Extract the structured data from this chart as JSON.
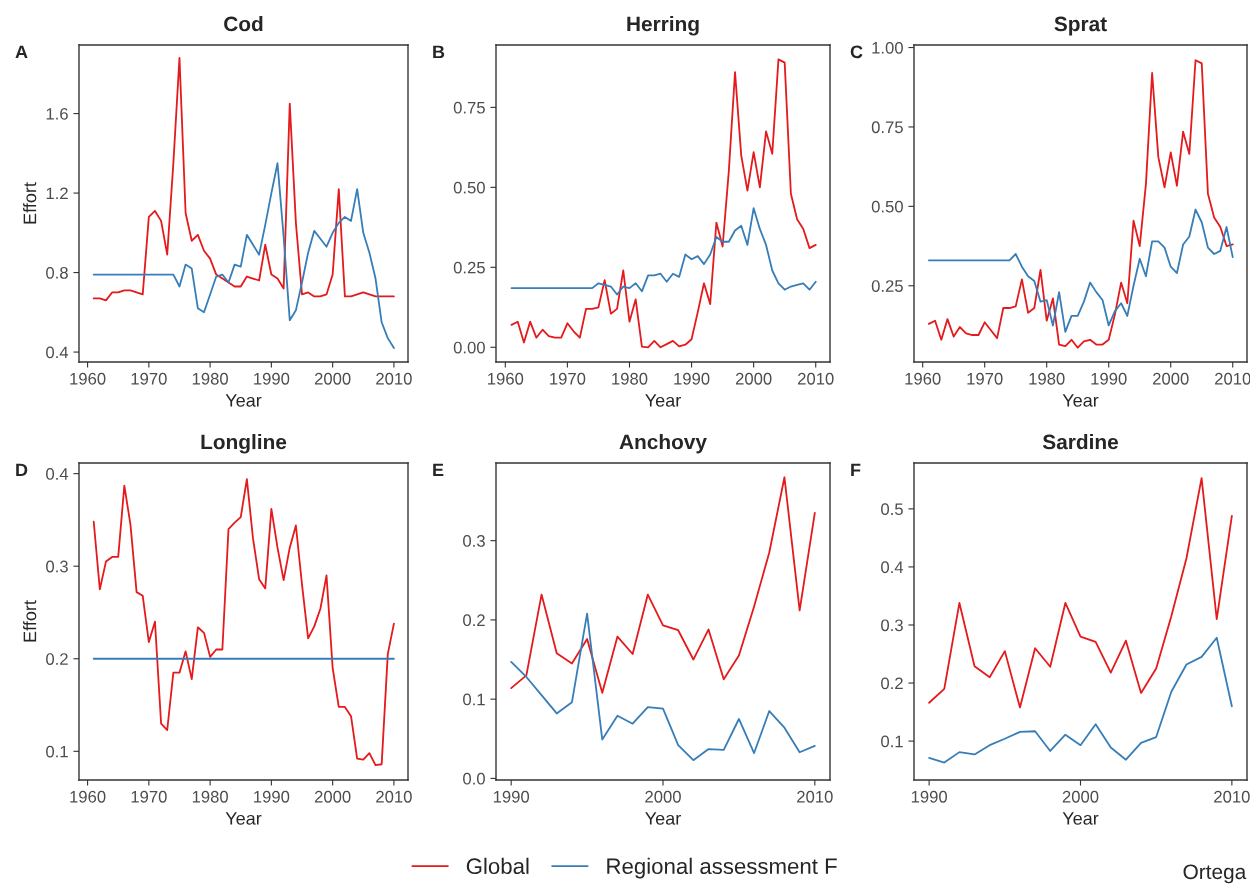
{
  "chart_data": [
    {
      "type": "line",
      "title": "Cod",
      "xlabel": "Year",
      "ylabel": "Effort",
      "annotations": [
        "A"
      ],
      "xlim": [
        1958.6,
        2012.3
      ],
      "xticks": [
        1960,
        1970,
        1980,
        1990,
        2000,
        2010
      ],
      "ylim": [
        0.35,
        1.945
      ],
      "yticks": [
        0.4,
        0.8,
        1.2,
        1.6
      ],
      "grid": false,
      "legend": "bottom",
      "series": [
        {
          "name": "Global",
          "color": "#e41a1c",
          "x": [
            1961,
            1962,
            1963,
            1964,
            1965,
            1966,
            1967,
            1968,
            1969,
            1970,
            1971,
            1972,
            1973,
            1974,
            1975,
            1976,
            1977,
            1978,
            1979,
            1980,
            1981,
            1982,
            1983,
            1984,
            1985,
            1986,
            1987,
            1988,
            1989,
            1990,
            1991,
            1992,
            1993,
            1994,
            1995,
            1996,
            1997,
            1998,
            1999,
            2000,
            2001,
            2002,
            2003,
            2004,
            2005,
            2006,
            2007,
            2008,
            2009,
            2010
          ],
          "values": [
            0.67,
            0.67,
            0.66,
            0.7,
            0.7,
            0.71,
            0.71,
            0.7,
            0.69,
            1.08,
            1.11,
            1.06,
            0.89,
            1.35,
            1.88,
            1.1,
            0.96,
            0.99,
            0.91,
            0.87,
            0.79,
            0.77,
            0.75,
            0.73,
            0.73,
            0.78,
            0.77,
            0.76,
            0.94,
            0.79,
            0.77,
            0.72,
            1.65,
            1.05,
            0.69,
            0.7,
            0.68,
            0.68,
            0.69,
            0.79,
            1.22,
            0.68,
            0.68,
            0.69,
            0.7,
            0.69,
            0.68,
            0.68,
            0.68,
            0.68
          ]
        },
        {
          "name": "Regional assessment F",
          "color": "#377eb8",
          "x": [
            1961,
            1974,
            1975,
            1976,
            1977,
            1978,
            1979,
            1980,
            1981,
            1982,
            1983,
            1984,
            1985,
            1986,
            1987,
            1988,
            1989,
            1990,
            1991,
            1992,
            1993,
            1994,
            1995,
            1996,
            1997,
            1998,
            1999,
            2000,
            2001,
            2002,
            2003,
            2004,
            2005,
            2006,
            2007,
            2008,
            2009,
            2010
          ],
          "values": [
            0.79,
            0.79,
            0.73,
            0.84,
            0.82,
            0.62,
            0.6,
            0.69,
            0.78,
            0.79,
            0.75,
            0.84,
            0.83,
            0.99,
            0.94,
            0.89,
            1.04,
            1.2,
            1.35,
            0.98,
            0.56,
            0.61,
            0.75,
            0.9,
            1.01,
            0.97,
            0.93,
            1.0,
            1.05,
            1.08,
            1.06,
            1.22,
            1.0,
            0.9,
            0.77,
            0.55,
            0.47,
            0.42
          ]
        }
      ]
    },
    {
      "type": "line",
      "title": "Herring",
      "xlabel": "Year",
      "annotations": [
        "B"
      ],
      "xlim": [
        1958.5,
        2012.3
      ],
      "xticks": [
        1960,
        1970,
        1980,
        1990,
        2000,
        2010
      ],
      "ylim": [
        -0.046,
        0.945
      ],
      "yticks": [
        {
          "value": 0,
          "label": "0.00"
        },
        0.25,
        {
          "value": 0.5,
          "label": "0.50"
        },
        0.75
      ],
      "grid": false,
      "series": [
        {
          "name": "Global",
          "color": "#e41a1c",
          "x": [
            1961,
            1962,
            1963,
            1964,
            1965,
            1966,
            1967,
            1968,
            1969,
            1970,
            1971,
            1972,
            1973,
            1974,
            1975,
            1976,
            1977,
            1978,
            1979,
            1980,
            1981,
            1982,
            1983,
            1984,
            1985,
            1986,
            1987,
            1988,
            1989,
            1990,
            1991,
            1992,
            1993,
            1994,
            1995,
            1996,
            1997,
            1998,
            1999,
            2000,
            2001,
            2002,
            2003,
            2004,
            2005,
            2006,
            2007,
            2008,
            2009,
            2010
          ],
          "values": [
            0.07,
            0.08,
            0.015,
            0.08,
            0.03,
            0.055,
            0.035,
            0.03,
            0.03,
            0.075,
            0.05,
            0.03,
            0.12,
            0.12,
            0.125,
            0.21,
            0.105,
            0.12,
            0.24,
            0.08,
            0.15,
            0.002,
            0.0,
            0.02,
            0.0,
            0.01,
            0.02,
            0.003,
            0.008,
            0.025,
            0.11,
            0.2,
            0.135,
            0.39,
            0.315,
            0.55,
            0.86,
            0.6,
            0.49,
            0.61,
            0.5,
            0.675,
            0.605,
            0.9,
            0.89,
            0.48,
            0.4,
            0.37,
            0.31,
            0.32
          ]
        },
        {
          "name": "Regional assessment F",
          "color": "#377eb8",
          "x": [
            1961,
            1974,
            1975,
            1976,
            1977,
            1978,
            1979,
            1980,
            1981,
            1982,
            1983,
            1984,
            1985,
            1986,
            1987,
            1988,
            1989,
            1990,
            1991,
            1992,
            1993,
            1994,
            1995,
            1996,
            1997,
            1998,
            1999,
            2000,
            2001,
            2002,
            2003,
            2004,
            2005,
            2006,
            2007,
            2008,
            2009,
            2010
          ],
          "values": [
            0.185,
            0.185,
            0.2,
            0.195,
            0.19,
            0.165,
            0.19,
            0.185,
            0.2,
            0.175,
            0.225,
            0.225,
            0.23,
            0.205,
            0.23,
            0.22,
            0.29,
            0.275,
            0.285,
            0.26,
            0.29,
            0.345,
            0.33,
            0.33,
            0.365,
            0.38,
            0.32,
            0.435,
            0.37,
            0.32,
            0.24,
            0.2,
            0.18,
            0.19,
            0.195,
            0.2,
            0.18,
            0.205
          ]
        }
      ]
    },
    {
      "type": "line",
      "title": "Sprat",
      "xlabel": "Year",
      "annotations": [
        "C"
      ],
      "xlim": [
        1958.6,
        2012.3
      ],
      "xticks": [
        1960,
        1970,
        1980,
        1990,
        2000,
        2010
      ],
      "ylim": [
        0.01,
        1.008
      ],
      "yticks": [
        0.25,
        {
          "value": 0.5,
          "label": "0.50"
        },
        0.75,
        {
          "value": 1.0,
          "label": "1.00"
        }
      ],
      "grid": false,
      "series": [
        {
          "name": "Global",
          "color": "#e41a1c",
          "x": [
            1961,
            1962,
            1963,
            1964,
            1965,
            1966,
            1967,
            1968,
            1969,
            1970,
            1971,
            1972,
            1973,
            1974,
            1975,
            1976,
            1977,
            1978,
            1979,
            1980,
            1981,
            1982,
            1983,
            1984,
            1985,
            1986,
            1987,
            1988,
            1989,
            1990,
            1991,
            1992,
            1993,
            1994,
            1995,
            1996,
            1997,
            1998,
            1999,
            2000,
            2001,
            2002,
            2003,
            2004,
            2005,
            2006,
            2007,
            2008,
            2009,
            2010
          ],
          "values": [
            0.13,
            0.14,
            0.08,
            0.145,
            0.09,
            0.12,
            0.1,
            0.095,
            0.095,
            0.135,
            0.11,
            0.085,
            0.18,
            0.18,
            0.185,
            0.27,
            0.165,
            0.18,
            0.3,
            0.14,
            0.21,
            0.065,
            0.06,
            0.08,
            0.055,
            0.075,
            0.08,
            0.065,
            0.065,
            0.08,
            0.16,
            0.26,
            0.195,
            0.455,
            0.375,
            0.57,
            0.92,
            0.655,
            0.56,
            0.67,
            0.565,
            0.735,
            0.665,
            0.96,
            0.95,
            0.54,
            0.465,
            0.435,
            0.375,
            0.38
          ]
        },
        {
          "name": "Regional assessment F",
          "color": "#377eb8",
          "x": [
            1961,
            1974,
            1975,
            1976,
            1977,
            1978,
            1979,
            1980,
            1981,
            1982,
            1983,
            1984,
            1985,
            1986,
            1987,
            1988,
            1989,
            1990,
            1991,
            1992,
            1993,
            1994,
            1995,
            1996,
            1997,
            1998,
            1999,
            2000,
            2001,
            2002,
            2003,
            2004,
            2005,
            2006,
            2007,
            2008,
            2009,
            2010
          ],
          "values": [
            0.33,
            0.33,
            0.35,
            0.31,
            0.28,
            0.265,
            0.2,
            0.205,
            0.125,
            0.23,
            0.105,
            0.155,
            0.155,
            0.2,
            0.26,
            0.23,
            0.205,
            0.125,
            0.17,
            0.195,
            0.155,
            0.25,
            0.335,
            0.28,
            0.39,
            0.39,
            0.37,
            0.31,
            0.29,
            0.38,
            0.405,
            0.49,
            0.45,
            0.37,
            0.35,
            0.36,
            0.435,
            0.34
          ]
        }
      ]
    },
    {
      "type": "line",
      "title": "Longline",
      "xlabel": "Year",
      "ylabel": "Effort",
      "annotations": [
        "D"
      ],
      "xlim": [
        1958.6,
        2012.3
      ],
      "xticks": [
        1960,
        1970,
        1980,
        1990,
        2000,
        2010
      ],
      "ylim": [
        0.069,
        0.4115
      ],
      "yticks": [
        0.1,
        0.2,
        0.3,
        0.4
      ],
      "grid": false,
      "series": [
        {
          "name": "Global",
          "color": "#e41a1c",
          "x": [
            1961,
            1962,
            1963,
            1964,
            1965,
            1966,
            1967,
            1968,
            1969,
            1970,
            1971,
            1972,
            1973,
            1974,
            1975,
            1976,
            1977,
            1978,
            1979,
            1980,
            1981,
            1982,
            1983,
            1984,
            1985,
            1986,
            1987,
            1988,
            1989,
            1990,
            1991,
            1992,
            1993,
            1994,
            1995,
            1996,
            1997,
            1998,
            1999,
            2000,
            2001,
            2002,
            2003,
            2004,
            2005,
            2006,
            2007,
            2008,
            2009,
            2010
          ],
          "values": [
            0.348,
            0.275,
            0.305,
            0.31,
            0.31,
            0.387,
            0.345,
            0.272,
            0.268,
            0.218,
            0.24,
            0.13,
            0.123,
            0.185,
            0.185,
            0.208,
            0.178,
            0.234,
            0.228,
            0.202,
            0.21,
            0.21,
            0.34,
            0.347,
            0.353,
            0.394,
            0.33,
            0.286,
            0.276,
            0.362,
            0.32,
            0.285,
            0.32,
            0.344,
            0.28,
            0.222,
            0.235,
            0.254,
            0.29,
            0.19,
            0.148,
            0.148,
            0.138,
            0.092,
            0.091,
            0.098,
            0.085,
            0.086,
            0.205,
            0.238
          ]
        },
        {
          "name": "Regional assessment F",
          "color": "#377eb8",
          "x": [
            1961,
            2010
          ],
          "values": [
            0.2,
            0.2
          ]
        }
      ]
    },
    {
      "type": "line",
      "title": "Anchovy",
      "xlabel": "Year",
      "annotations": [
        "E"
      ],
      "xlim": [
        1989.0,
        2011.0
      ],
      "xticks": [
        1990,
        2000,
        2010
      ],
      "ylim": [
        -0.002,
        0.398
      ],
      "yticks": [
        {
          "value": 0.0,
          "label": "0.0"
        },
        0.1,
        0.2,
        0.3
      ],
      "grid": false,
      "series": [
        {
          "name": "Global",
          "color": "#e41a1c",
          "x": [
            1990,
            1991,
            1992,
            1993,
            1994,
            1995,
            1996,
            1997,
            1998,
            1999,
            2000,
            2001,
            2002,
            2003,
            2004,
            2005,
            2006,
            2007,
            2008,
            2009,
            2010
          ],
          "values": [
            0.114,
            0.13,
            0.232,
            0.158,
            0.145,
            0.176,
            0.108,
            0.179,
            0.157,
            0.232,
            0.193,
            0.187,
            0.15,
            0.188,
            0.125,
            0.155,
            0.217,
            0.285,
            0.38,
            0.212,
            0.335
          ]
        },
        {
          "name": "Regional assessment F",
          "color": "#377eb8",
          "x": [
            1990,
            1991,
            1992,
            1993,
            1994,
            1995,
            1996,
            1997,
            1998,
            1999,
            2000,
            2001,
            2002,
            2003,
            2004,
            2005,
            2006,
            2007,
            2008,
            2009,
            2010
          ],
          "values": [
            0.147,
            0.128,
            0.105,
            0.082,
            0.096,
            0.208,
            0.049,
            0.079,
            0.069,
            0.09,
            0.088,
            0.042,
            0.023,
            0.037,
            0.036,
            0.075,
            0.032,
            0.085,
            0.064,
            0.033,
            0.041
          ]
        }
      ]
    },
    {
      "type": "line",
      "title": "Sardine",
      "xlabel": "Year",
      "annotations": [
        "F",
        "Ortega"
      ],
      "xlim": [
        1989.0,
        2011.0
      ],
      "xticks": [
        1990,
        2000,
        2010
      ],
      "ylim": [
        0.033,
        0.579
      ],
      "yticks": [
        0.1,
        0.2,
        0.3,
        0.4,
        0.5
      ],
      "grid": false,
      "series": [
        {
          "name": "Global",
          "color": "#e41a1c",
          "x": [
            1990,
            1991,
            1992,
            1993,
            1994,
            1995,
            1996,
            1997,
            1998,
            1999,
            2000,
            2001,
            2002,
            2003,
            2004,
            2005,
            2006,
            2007,
            2008,
            2009,
            2010
          ],
          "values": [
            0.166,
            0.19,
            0.338,
            0.229,
            0.21,
            0.255,
            0.158,
            0.26,
            0.228,
            0.338,
            0.28,
            0.271,
            0.218,
            0.273,
            0.183,
            0.225,
            0.315,
            0.415,
            0.553,
            0.31,
            0.488
          ]
        },
        {
          "name": "Regional assessment F",
          "color": "#377eb8",
          "x": [
            1990,
            1991,
            1992,
            1993,
            1994,
            1995,
            1996,
            1997,
            1998,
            1999,
            2000,
            2001,
            2002,
            2003,
            2004,
            2005,
            2006,
            2007,
            2008,
            2009,
            2010
          ],
          "values": [
            0.071,
            0.063,
            0.081,
            0.077,
            0.093,
            0.104,
            0.116,
            0.117,
            0.083,
            0.111,
            0.093,
            0.129,
            0.089,
            0.068,
            0.097,
            0.107,
            0.185,
            0.232,
            0.245,
            0.278,
            0.16
          ]
        }
      ]
    }
  ]
}
